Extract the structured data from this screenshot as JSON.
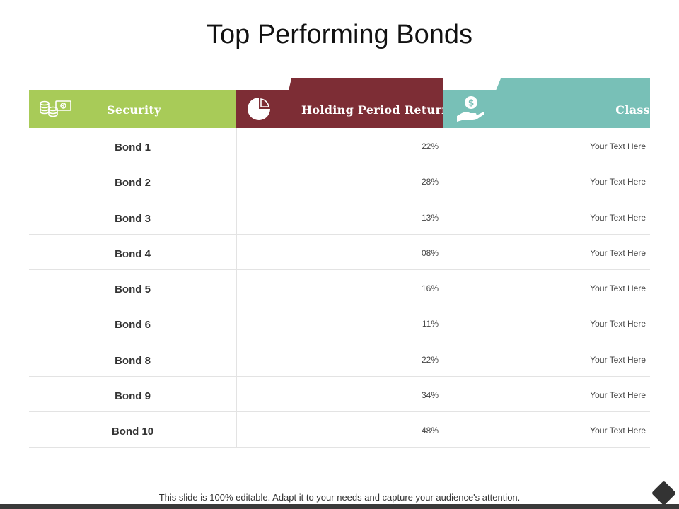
{
  "slide": {
    "title": "Top Performing Bonds",
    "footer_note": "This slide is 100% editable. Adapt it to your needs and capture your audience's attention."
  },
  "table": {
    "headers": {
      "security": "Security",
      "holding_period_return": "Holding Period Return",
      "class": "Class"
    },
    "header_icons": {
      "security": "coins-cash-icon",
      "holding_period_return": "pie-chart-icon",
      "class": "dollar-hand-icon"
    },
    "rows": [
      {
        "security": "Bond 1",
        "return": "22%",
        "class": "Your Text Here"
      },
      {
        "security": "Bond 2",
        "return": "28%",
        "class": "Your Text Here"
      },
      {
        "security": "Bond 3",
        "return": "13%",
        "class": "Your Text Here"
      },
      {
        "security": "Bond 4",
        "return": "08%",
        "class": "Your Text Here"
      },
      {
        "security": "Bond 5",
        "return": "16%",
        "class": "Your Text Here"
      },
      {
        "security": "Bond 6",
        "return": "11%",
        "class": "Your Text Here"
      },
      {
        "security": "Bond 8",
        "return": "22%",
        "class": "Your Text Here"
      },
      {
        "security": "Bond 9",
        "return": "34%",
        "class": "Your Text Here"
      },
      {
        "security": "Bond 10",
        "return": "48%",
        "class": "Your Text Here"
      }
    ]
  },
  "colors": {
    "security_header": "#a8cb58",
    "return_header": "#7d2d35",
    "class_header": "#78c0b7"
  }
}
